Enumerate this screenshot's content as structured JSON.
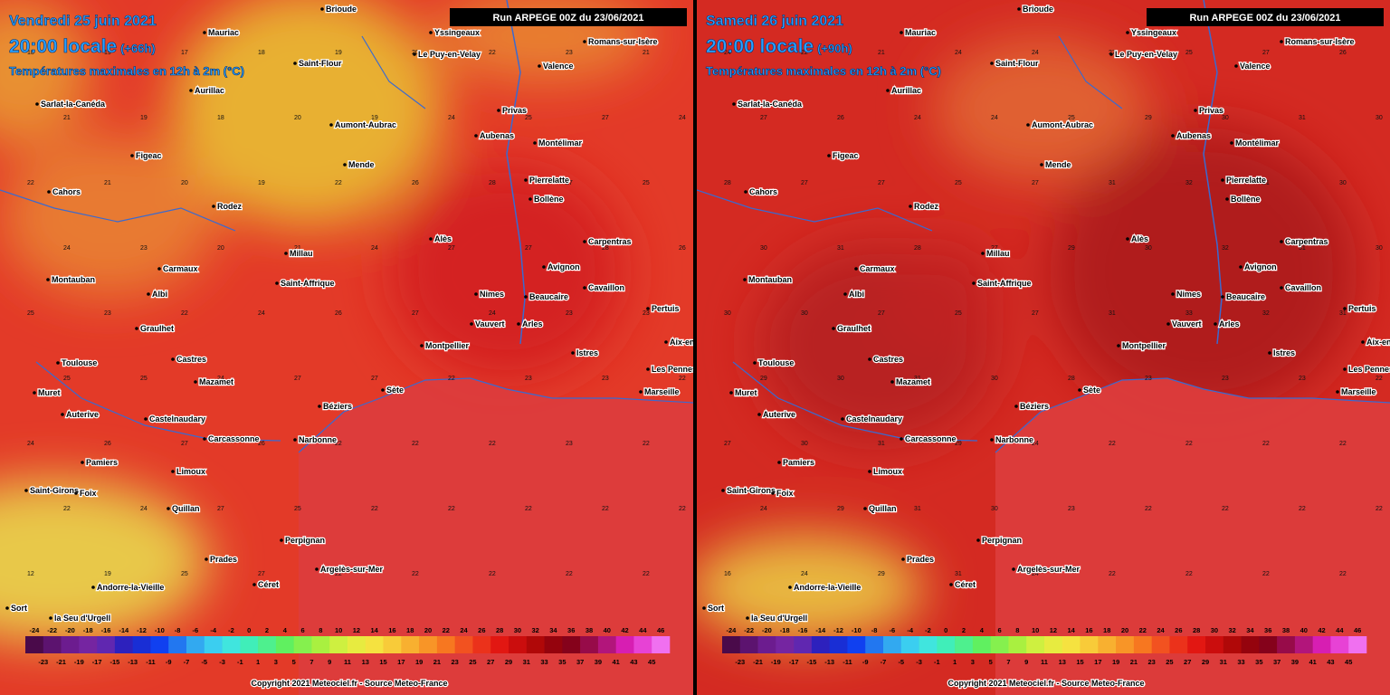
{
  "panels": [
    {
      "date": "Vendredi 25 juin 2021",
      "time": "20:00 locale",
      "offset": "(+66h)",
      "subtitle": "Températures maximales en 12h à 2m (°C)",
      "run": "Run ARPEGE 00Z du 23/06/2021",
      "copyright": "Copyright 2021 Meteociel.fr - Source Meteo-France",
      "temps": [
        [
          18,
          19,
          17,
          18,
          19,
          20,
          22,
          23,
          21
        ],
        [
          21,
          19,
          18,
          20,
          19,
          24,
          25,
          27,
          24
        ],
        [
          22,
          21,
          20,
          19,
          22,
          26,
          28,
          27,
          25
        ],
        [
          24,
          23,
          20,
          21,
          24,
          27,
          27,
          28,
          26
        ],
        [
          25,
          23,
          22,
          24,
          26,
          27,
          24,
          23,
          23
        ],
        [
          25,
          25,
          24,
          27,
          27,
          22,
          23,
          23,
          22
        ],
        [
          24,
          26,
          27,
          26,
          22,
          22,
          22,
          23,
          22
        ],
        [
          22,
          24,
          27,
          25,
          22,
          22,
          22,
          22,
          22
        ],
        [
          12,
          19,
          25,
          27,
          22,
          22,
          22,
          22,
          22
        ]
      ]
    },
    {
      "date": "Samedi 26 juin 2021",
      "time": "20:00 locale",
      "offset": "(+90h)",
      "subtitle": "Températures maximales en 12h à 2m (°C)",
      "run": "Run ARPEGE 00Z du 23/06/2021",
      "copyright": "Copyright 2021 Meteociel.fr - Source Meteo-France",
      "temps": [
        [
          24,
          22,
          21,
          24,
          24,
          27,
          25,
          27,
          26
        ],
        [
          27,
          26,
          24,
          24,
          25,
          29,
          30,
          31,
          30
        ],
        [
          28,
          27,
          27,
          25,
          27,
          31,
          32,
          31,
          30
        ],
        [
          30,
          31,
          28,
          27,
          29,
          30,
          32,
          31,
          30
        ],
        [
          30,
          30,
          27,
          25,
          27,
          31,
          33,
          32,
          31
        ],
        [
          29,
          30,
          31,
          30,
          28,
          23,
          23,
          23,
          22
        ],
        [
          27,
          30,
          31,
          29,
          24,
          22,
          22,
          22,
          22
        ],
        [
          24,
          29,
          31,
          30,
          23,
          22,
          22,
          22,
          22
        ],
        [
          16,
          24,
          29,
          31,
          24,
          22,
          22,
          22,
          22
        ]
      ]
    }
  ],
  "cities": [
    "Brioude",
    "Mauriac",
    "Yssingeaux",
    "Romans-sur-Isère",
    "Le Puy-en-Velay",
    "Saint-Flour",
    "Valence",
    "Aurillac",
    "Sarlat-la-Canéda",
    "Privas",
    "Aumont-Aubrac",
    "Aubenas",
    "Montélimar",
    "Figeac",
    "Mende",
    "Pierrelatte",
    "Cahors",
    "Bollène",
    "Rodez",
    "Alès",
    "Carpentras",
    "Millau",
    "Avignon",
    "Carmaux",
    "Montauban",
    "Saint-Affrique",
    "Albi",
    "Nimes",
    "Beaucaire",
    "Cavaillon",
    "Pertuis",
    "Graulhet",
    "Vauvert",
    "Arles",
    "Aix-en-Provence",
    "Montpellier",
    "Istres",
    "Castres",
    "Toulouse",
    "Les Pennes-Mirabeau",
    "Mazamet",
    "Sète",
    "Marseille",
    "Muret",
    "Béziers",
    "Auterive",
    "Castelnaudary",
    "Carcassonne",
    "Narbonne",
    "Pamiers",
    "Limoux",
    "Saint-Girons",
    "Foix",
    "Quillan",
    "Perpignan",
    "Prades",
    "Argelès-sur-Mer",
    "Céret",
    "Andorre-la-Vieille",
    "Sort",
    "la Seu d'Urgell"
  ],
  "legend": {
    "top": [
      -24,
      -22,
      -20,
      -18,
      -16,
      -14,
      -12,
      -10,
      -8,
      -6,
      -4,
      -2,
      0,
      2,
      4,
      6,
      8,
      10,
      12,
      14,
      16,
      18,
      20,
      22,
      24,
      26,
      28,
      30,
      32,
      34,
      36,
      38,
      40,
      42,
      44,
      46
    ],
    "bottom": [
      -23,
      -21,
      -19,
      -17,
      -15,
      -13,
      -11,
      -9,
      -7,
      -5,
      -3,
      -1,
      1,
      3,
      5,
      7,
      9,
      11,
      13,
      15,
      17,
      19,
      21,
      23,
      25,
      27,
      29,
      31,
      33,
      35,
      37,
      39,
      41,
      43,
      45
    ]
  }
}
